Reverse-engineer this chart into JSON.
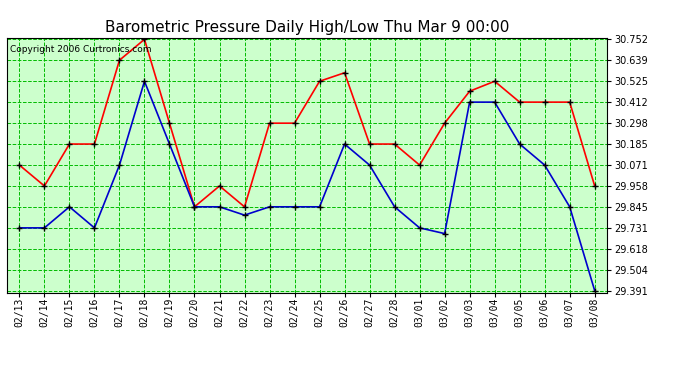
{
  "title": "Barometric Pressure Daily High/Low Thu Mar 9 00:00",
  "copyright": "Copyright 2006 Curtronics.com",
  "dates": [
    "02/13",
    "02/14",
    "02/15",
    "02/16",
    "02/17",
    "02/18",
    "02/19",
    "02/20",
    "02/21",
    "02/22",
    "02/23",
    "02/24",
    "02/25",
    "02/26",
    "02/27",
    "02/28",
    "03/01",
    "03/02",
    "03/03",
    "03/04",
    "03/05",
    "03/06",
    "03/07",
    "03/08"
  ],
  "high": [
    30.071,
    29.958,
    30.185,
    30.185,
    30.639,
    30.752,
    30.298,
    29.845,
    29.958,
    29.845,
    30.298,
    30.298,
    30.525,
    30.571,
    30.185,
    30.185,
    30.071,
    30.298,
    30.471,
    30.525,
    30.412,
    30.412,
    30.412,
    29.958
  ],
  "low": [
    29.731,
    29.731,
    29.845,
    29.731,
    30.071,
    30.525,
    30.185,
    29.845,
    29.845,
    29.8,
    29.845,
    29.845,
    29.845,
    30.185,
    30.071,
    29.845,
    29.731,
    29.7,
    30.412,
    30.412,
    30.185,
    30.071,
    29.845,
    29.391
  ],
  "ylim_min": 29.391,
  "ylim_max": 30.752,
  "yticks": [
    29.391,
    29.504,
    29.618,
    29.731,
    29.845,
    29.958,
    30.071,
    30.185,
    30.298,
    30.412,
    30.525,
    30.639,
    30.752
  ],
  "high_color": "#ff0000",
  "low_color": "#0000cc",
  "plot_bg": "#ccffcc",
  "fig_bg": "#ffffff",
  "grid_color": "#00bb00",
  "title_fontsize": 11,
  "tick_fontsize": 7,
  "marker": "+",
  "marker_color": "#000000",
  "linewidth": 1.2,
  "markersize": 5
}
